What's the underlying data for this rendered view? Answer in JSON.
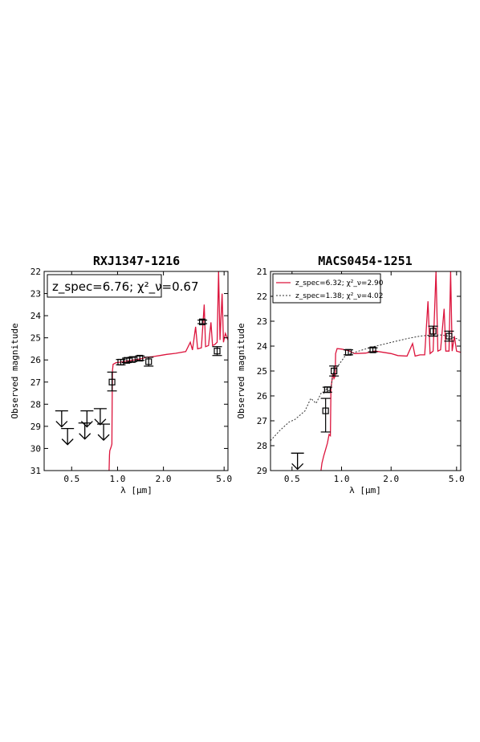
{
  "chart_data": [
    {
      "type": "line",
      "title": "RXJ1347-1216",
      "xlabel": "λ [μm]",
      "ylabel": "Observed magnitude",
      "xscale": "log",
      "xlim": [
        0.33,
        5.3
      ],
      "ylim": [
        31,
        22
      ],
      "y_inverted": true,
      "xticks": [
        0.5,
        1.0,
        2.0,
        5.0
      ],
      "xtick_labels": [
        "0.5",
        "1.0",
        "2.0",
        "5.0"
      ],
      "yticks": [
        22,
        23,
        24,
        25,
        26,
        27,
        28,
        29,
        30,
        31
      ],
      "yticklabels": [
        "22",
        "23",
        "24",
        "25",
        "26",
        "27",
        "28",
        "29",
        "30",
        "31"
      ],
      "legend": {
        "placement": "top-left",
        "style": "box",
        "text": "z_spec=6.76; χ²_ν=0.67"
      },
      "series": [
        {
          "color": "#dc143c",
          "style": "solid",
          "points": [
            [
              0.88,
              31.0
            ],
            [
              0.885,
              30.3
            ],
            [
              0.89,
              30.1
            ],
            [
              0.9,
              30.0
            ],
            [
              0.91,
              29.9
            ],
            [
              0.918,
              29.8
            ],
            [
              0.923,
              27.5
            ],
            [
              0.926,
              26.5
            ],
            [
              0.935,
              26.2
            ],
            [
              0.98,
              26.12
            ],
            [
              1.05,
              26.1
            ],
            [
              1.15,
              26.05
            ],
            [
              1.3,
              26.0
            ],
            [
              1.42,
              25.95
            ],
            [
              1.55,
              25.88
            ],
            [
              1.7,
              25.85
            ],
            [
              1.9,
              25.8
            ],
            [
              2.1,
              25.75
            ],
            [
              2.4,
              25.7
            ],
            [
              2.8,
              25.62
            ],
            [
              3.0,
              25.2
            ],
            [
              3.1,
              25.55
            ],
            [
              3.25,
              24.5
            ],
            [
              3.35,
              25.5
            ],
            [
              3.55,
              25.45
            ],
            [
              3.7,
              23.5
            ],
            [
              3.78,
              25.4
            ],
            [
              3.95,
              25.35
            ],
            [
              4.1,
              24.3
            ],
            [
              4.2,
              25.35
            ],
            [
              4.35,
              25.3
            ],
            [
              4.5,
              25.2
            ],
            [
              4.6,
              22.0
            ],
            [
              4.7,
              25.1
            ],
            [
              4.85,
              23.0
            ],
            [
              4.95,
              25.2
            ],
            [
              5.1,
              24.8
            ],
            [
              5.3,
              25.1
            ]
          ]
        }
      ],
      "detections": [
        {
          "x": 0.92,
          "y": 27.0,
          "yerr_lo": 0.45,
          "yerr_hi": 0.4
        },
        {
          "x": 1.05,
          "y": 26.1,
          "yerr_lo": 0.12,
          "yerr_hi": 0.12
        },
        {
          "x": 1.15,
          "y": 26.02,
          "yerr_lo": 0.1,
          "yerr_hi": 0.1
        },
        {
          "x": 1.25,
          "y": 25.98,
          "yerr_lo": 0.1,
          "yerr_hi": 0.1
        },
        {
          "x": 1.4,
          "y": 25.92,
          "yerr_lo": 0.1,
          "yerr_hi": 0.1
        },
        {
          "x": 1.6,
          "y": 26.08,
          "yerr_lo": 0.2,
          "yerr_hi": 0.2
        },
        {
          "x": 3.6,
          "y": 24.28,
          "yerr_lo": 0.08,
          "yerr_hi": 0.08
        },
        {
          "x": 4.5,
          "y": 25.6,
          "yerr_lo": 0.2,
          "yerr_hi": 0.2
        }
      ],
      "upper_limits": [
        {
          "x": 0.43,
          "y": 28.3
        },
        {
          "x": 0.47,
          "y": 29.1
        },
        {
          "x": 0.61,
          "y": 28.85
        },
        {
          "x": 0.63,
          "y": 28.3
        },
        {
          "x": 0.77,
          "y": 28.2
        },
        {
          "x": 0.81,
          "y": 28.9
        }
      ]
    },
    {
      "type": "line",
      "title": "MACS0454-1251",
      "xlabel": "λ [μm]",
      "ylabel": "Observed magnitude",
      "xscale": "log",
      "xlim": [
        0.37,
        5.3
      ],
      "ylim": [
        29,
        21
      ],
      "y_inverted": true,
      "xticks": [
        0.5,
        1.0,
        2.0,
        5.0
      ],
      "xtick_labels": [
        "0.5",
        "1.0",
        "2.0",
        "5.0"
      ],
      "yticks": [
        21,
        22,
        23,
        24,
        25,
        26,
        27,
        28,
        29
      ],
      "yticklabels": [
        "21",
        "22",
        "23",
        "24",
        "25",
        "26",
        "27",
        "28",
        "29"
      ],
      "legend": {
        "placement": "top-left",
        "style": "box",
        "entries": [
          {
            "text": "z_spec=6.32; χ²_ν=2.90",
            "color": "#dc143c",
            "style": "solid"
          },
          {
            "text": "z_spec=1.38; χ²_ν=4.02",
            "color": "#333333",
            "style": "dotted"
          }
        ]
      },
      "series": [
        {
          "color": "#dc143c",
          "style": "solid",
          "points": [
            [
              0.75,
              29.0
            ],
            [
              0.76,
              28.7
            ],
            [
              0.78,
              28.4
            ],
            [
              0.8,
              28.15
            ],
            [
              0.82,
              27.9
            ],
            [
              0.84,
              27.55
            ],
            [
              0.855,
              27.6
            ],
            [
              0.862,
              25.7
            ],
            [
              0.87,
              25.5
            ],
            [
              0.885,
              25.1
            ],
            [
              0.9,
              25.3
            ],
            [
              0.915,
              25.2
            ],
            [
              0.92,
              24.3
            ],
            [
              0.94,
              24.1
            ],
            [
              1.0,
              24.12
            ],
            [
              1.1,
              24.18
            ],
            [
              1.2,
              24.3
            ],
            [
              1.4,
              24.28
            ],
            [
              1.6,
              24.2
            ],
            [
              1.8,
              24.25
            ],
            [
              2.0,
              24.3
            ],
            [
              2.2,
              24.38
            ],
            [
              2.5,
              24.4
            ],
            [
              2.7,
              23.9
            ],
            [
              2.8,
              24.4
            ],
            [
              3.0,
              24.35
            ],
            [
              3.2,
              24.35
            ],
            [
              3.35,
              22.2
            ],
            [
              3.45,
              24.3
            ],
            [
              3.6,
              24.2
            ],
            [
              3.75,
              21.0
            ],
            [
              3.85,
              24.2
            ],
            [
              4.0,
              24.15
            ],
            [
              4.2,
              22.5
            ],
            [
              4.3,
              24.2
            ],
            [
              4.5,
              24.2
            ],
            [
              4.6,
              21.0
            ],
            [
              4.7,
              24.2
            ],
            [
              4.85,
              23.6
            ],
            [
              5.0,
              24.2
            ],
            [
              5.3,
              24.25
            ]
          ]
        },
        {
          "color": "#333333",
          "style": "dotted",
          "points": [
            [
              0.37,
              27.8
            ],
            [
              0.42,
              27.4
            ],
            [
              0.48,
              27.05
            ],
            [
              0.52,
              26.95
            ],
            [
              0.6,
              26.6
            ],
            [
              0.65,
              26.1
            ],
            [
              0.7,
              26.3
            ],
            [
              0.75,
              25.9
            ],
            [
              0.78,
              25.9
            ],
            [
              0.8,
              25.7
            ],
            [
              0.83,
              25.8
            ],
            [
              0.86,
              25.75
            ],
            [
              0.88,
              25.3
            ],
            [
              0.9,
              25.0
            ],
            [
              0.95,
              24.8
            ],
            [
              1.05,
              24.4
            ],
            [
              1.2,
              24.25
            ],
            [
              1.5,
              24.05
            ],
            [
              2.0,
              23.85
            ],
            [
              2.5,
              23.7
            ],
            [
              3.0,
              23.6
            ],
            [
              3.5,
              23.55
            ],
            [
              4.0,
              23.55
            ],
            [
              4.5,
              23.6
            ],
            [
              5.0,
              23.7
            ],
            [
              5.3,
              23.8
            ]
          ]
        }
      ],
      "detections": [
        {
          "x": 0.8,
          "y": 26.6,
          "yerr_lo": 0.5,
          "yerr_hi": 0.85
        },
        {
          "x": 0.82,
          "y": 25.75,
          "yerr_lo": 0.1,
          "yerr_hi": 0.1
        },
        {
          "x": 0.9,
          "y": 25.0,
          "yerr_lo": 0.2,
          "yerr_hi": 0.2
        },
        {
          "x": 1.1,
          "y": 24.25,
          "yerr_lo": 0.1,
          "yerr_hi": 0.1
        },
        {
          "x": 1.55,
          "y": 24.15,
          "yerr_lo": 0.08,
          "yerr_hi": 0.08
        },
        {
          "x": 3.6,
          "y": 23.4,
          "yerr_lo": 0.2,
          "yerr_hi": 0.2
        },
        {
          "x": 4.5,
          "y": 23.6,
          "yerr_lo": 0.2,
          "yerr_hi": 0.2
        }
      ],
      "upper_limits": [
        {
          "x": 0.54,
          "y": 28.3
        }
      ]
    }
  ]
}
